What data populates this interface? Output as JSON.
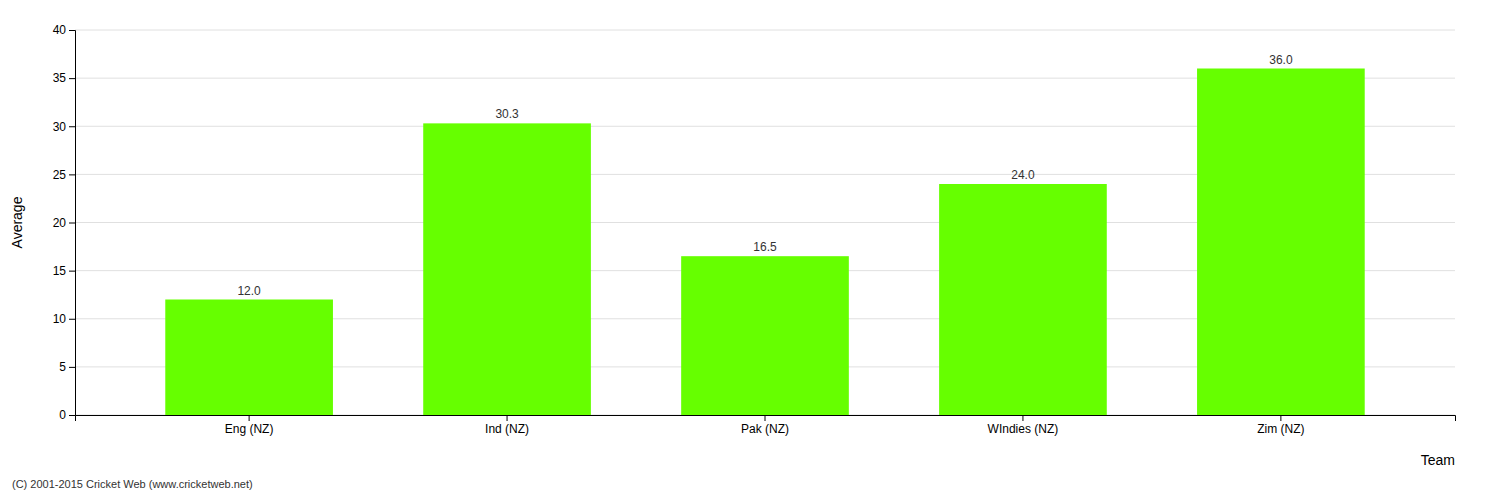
{
  "chart_data": {
    "type": "bar",
    "categories": [
      "Eng (NZ)",
      "Ind (NZ)",
      "Pak (NZ)",
      "WIndies (NZ)",
      "Zim (NZ)"
    ],
    "values": [
      12.0,
      30.3,
      16.5,
      24.0,
      36.0
    ],
    "value_labels": [
      "12.0",
      "30.3",
      "16.5",
      "24.0",
      "36.0"
    ],
    "data_labels": true,
    "color": "#66ff00",
    "xlabel": "Team",
    "ylabel": "Average",
    "ylim": [
      0,
      40
    ],
    "yticks": [
      0,
      5,
      10,
      15,
      20,
      25,
      30,
      35,
      40
    ],
    "grid": true,
    "annotations": [
      "(C) 2001-2015 Cricket Web (www.cricketweb.net)"
    ]
  }
}
